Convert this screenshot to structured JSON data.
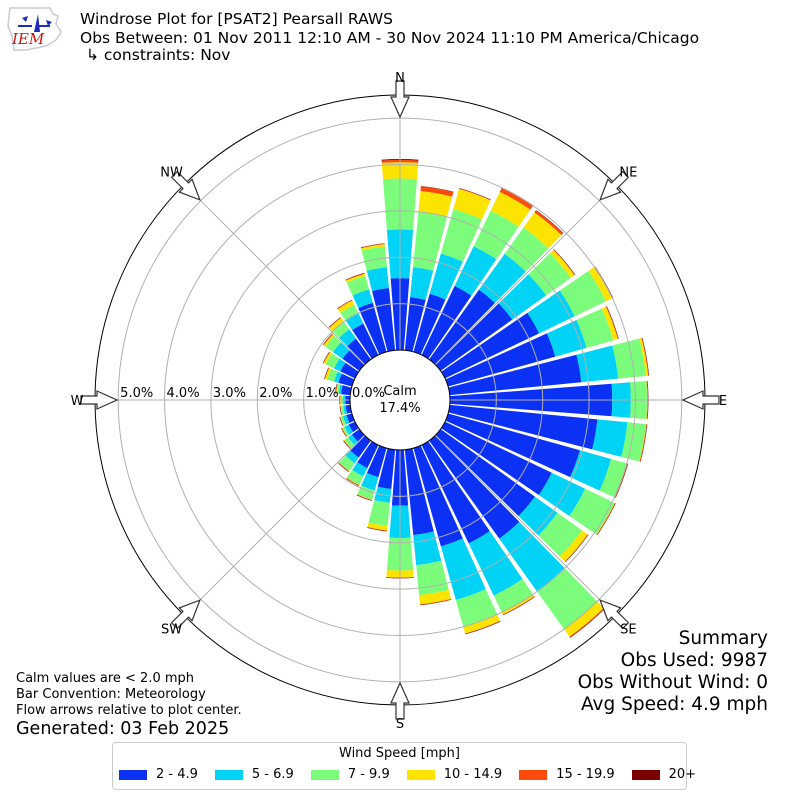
{
  "header": {
    "logo_text": "IEM",
    "title": "Windrose Plot for [PSAT2] Pearsall RAWS",
    "obs_between": "Obs Between: 01 Nov 2011 12:10 AM - 30 Nov 2024 11:10 PM America/Chicago",
    "constraints": "↳ constraints: Nov"
  },
  "summary": {
    "heading": "Summary",
    "obs_used": "Obs Used: 9987",
    "obs_without_wind": "Obs Without Wind: 0",
    "avg_speed": "Avg Speed: 4.9 mph"
  },
  "notes": {
    "calm_note": "Calm values are < 2.0 mph",
    "bar_convention": "Bar Convention: Meteorology",
    "flow_arrows": "Flow arrows relative to plot center.",
    "generated": "Generated: 03 Feb 2025"
  },
  "legend": {
    "title": "Wind Speed [mph]",
    "items": [
      {
        "label": "2 - 4.9",
        "color": "#0b31f5"
      },
      {
        "label": "5 - 6.9",
        "color": "#00d3f5"
      },
      {
        "label": "7 - 9.9",
        "color": "#7bfd7b"
      },
      {
        "label": "10 - 14.9",
        "color": "#fce400"
      },
      {
        "label": "15 - 19.9",
        "color": "#fe4a0a"
      },
      {
        "label": "20+",
        "color": "#7a0000"
      }
    ]
  },
  "chart_data": {
    "type": "windrose",
    "calm_label": "Calm",
    "calm_value": "17.4%",
    "calm_percent": 17.4,
    "radial_ticks": [
      "0.0%",
      "1.0%",
      "2.0%",
      "3.0%",
      "4.0%",
      "5.0%"
    ],
    "radial_max_percent": 5.5,
    "compass_labels": [
      "N",
      "NE",
      "E",
      "SE",
      "S",
      "SW",
      "W",
      "NW"
    ],
    "series_names": [
      "2 - 4.9",
      "5 - 6.9",
      "7 - 9.9",
      "10 - 14.9",
      "15 - 19.9",
      "20+"
    ],
    "direction_degrees": [
      0,
      10,
      20,
      30,
      40,
      50,
      60,
      70,
      80,
      90,
      100,
      110,
      120,
      130,
      140,
      150,
      160,
      170,
      180,
      190,
      200,
      210,
      220,
      230,
      240,
      250,
      260,
      270,
      280,
      290,
      300,
      310,
      320,
      330,
      340,
      350
    ],
    "cumulative_percent": [
      [
        1.55,
        2.6,
        3.7,
        4.05,
        4.1,
        4.12
      ],
      [
        1.15,
        1.8,
        3.0,
        3.45,
        3.55,
        3.56
      ],
      [
        1.3,
        2.2,
        3.2,
        3.65,
        3.66,
        3.67
      ],
      [
        1.65,
        2.6,
        3.45,
        3.9,
        4.0,
        4.01
      ],
      [
        1.85,
        2.8,
        3.5,
        3.9,
        3.95,
        3.96
      ],
      [
        1.9,
        2.8,
        3.45,
        3.55,
        3.56,
        3.57
      ],
      [
        2.25,
        3.1,
        3.85,
        4.0,
        4.01,
        4.02
      ],
      [
        2.4,
        3.1,
        3.7,
        3.8,
        3.81,
        3.82
      ],
      [
        2.85,
        3.65,
        4.25,
        4.3,
        4.31,
        4.32
      ],
      [
        3.5,
        3.9,
        4.25,
        4.26,
        4.27,
        4.28
      ],
      [
        3.2,
        3.85,
        4.25,
        4.26,
        4.27,
        4.28
      ],
      [
        2.95,
        3.65,
        4.0,
        4.01,
        4.02,
        4.03
      ],
      [
        2.55,
        3.35,
        4.05,
        4.06,
        4.07,
        4.08
      ],
      [
        2.5,
        3.1,
        3.75,
        3.9,
        3.91,
        3.92
      ],
      [
        2.6,
        4.0,
        5.0,
        5.2,
        5.22,
        5.23
      ],
      [
        2.35,
        3.6,
        4.0,
        4.05,
        4.06,
        4.07
      ],
      [
        2.2,
        3.4,
        4.0,
        4.15,
        4.16,
        4.17
      ],
      [
        1.85,
        2.5,
        3.15,
        3.35,
        3.36,
        3.37
      ],
      [
        1.2,
        1.9,
        2.6,
        2.75,
        2.76,
        2.77
      ],
      [
        0.85,
        1.15,
        1.65,
        1.75,
        1.76,
        1.77
      ],
      [
        0.65,
        0.95,
        1.15,
        1.16,
        1.17,
        1.18
      ],
      [
        0.55,
        0.75,
        0.95,
        0.96,
        0.97,
        0.98
      ],
      [
        0.45,
        0.6,
        0.8,
        0.81,
        0.82,
        0.83
      ],
      [
        0.2,
        0.3,
        0.4,
        0.41,
        0.42,
        0.43
      ],
      [
        0.15,
        0.25,
        0.3,
        0.31,
        0.32,
        0.33
      ],
      [
        0.12,
        0.2,
        0.25,
        0.26,
        0.27,
        0.28
      ],
      [
        0.1,
        0.15,
        0.2,
        0.21,
        0.22,
        0.23
      ],
      [
        0.1,
        0.15,
        0.2,
        0.21,
        0.22,
        0.23
      ],
      [
        0.2,
        0.25,
        0.3,
        0.31,
        0.32,
        0.33
      ],
      [
        0.3,
        0.4,
        0.55,
        0.6,
        0.61,
        0.62
      ],
      [
        0.35,
        0.5,
        0.7,
        0.75,
        0.76,
        0.77
      ],
      [
        0.45,
        0.7,
        0.9,
        0.95,
        0.96,
        0.97
      ],
      [
        0.55,
        0.8,
        1.0,
        1.1,
        1.11,
        1.12
      ],
      [
        0.75,
        1.0,
        1.2,
        1.3,
        1.31,
        1.32
      ],
      [
        1.1,
        1.4,
        1.7,
        1.75,
        1.76,
        1.77
      ],
      [
        1.35,
        1.8,
        2.25,
        2.3,
        2.31,
        2.32
      ]
    ],
    "grid": true
  }
}
